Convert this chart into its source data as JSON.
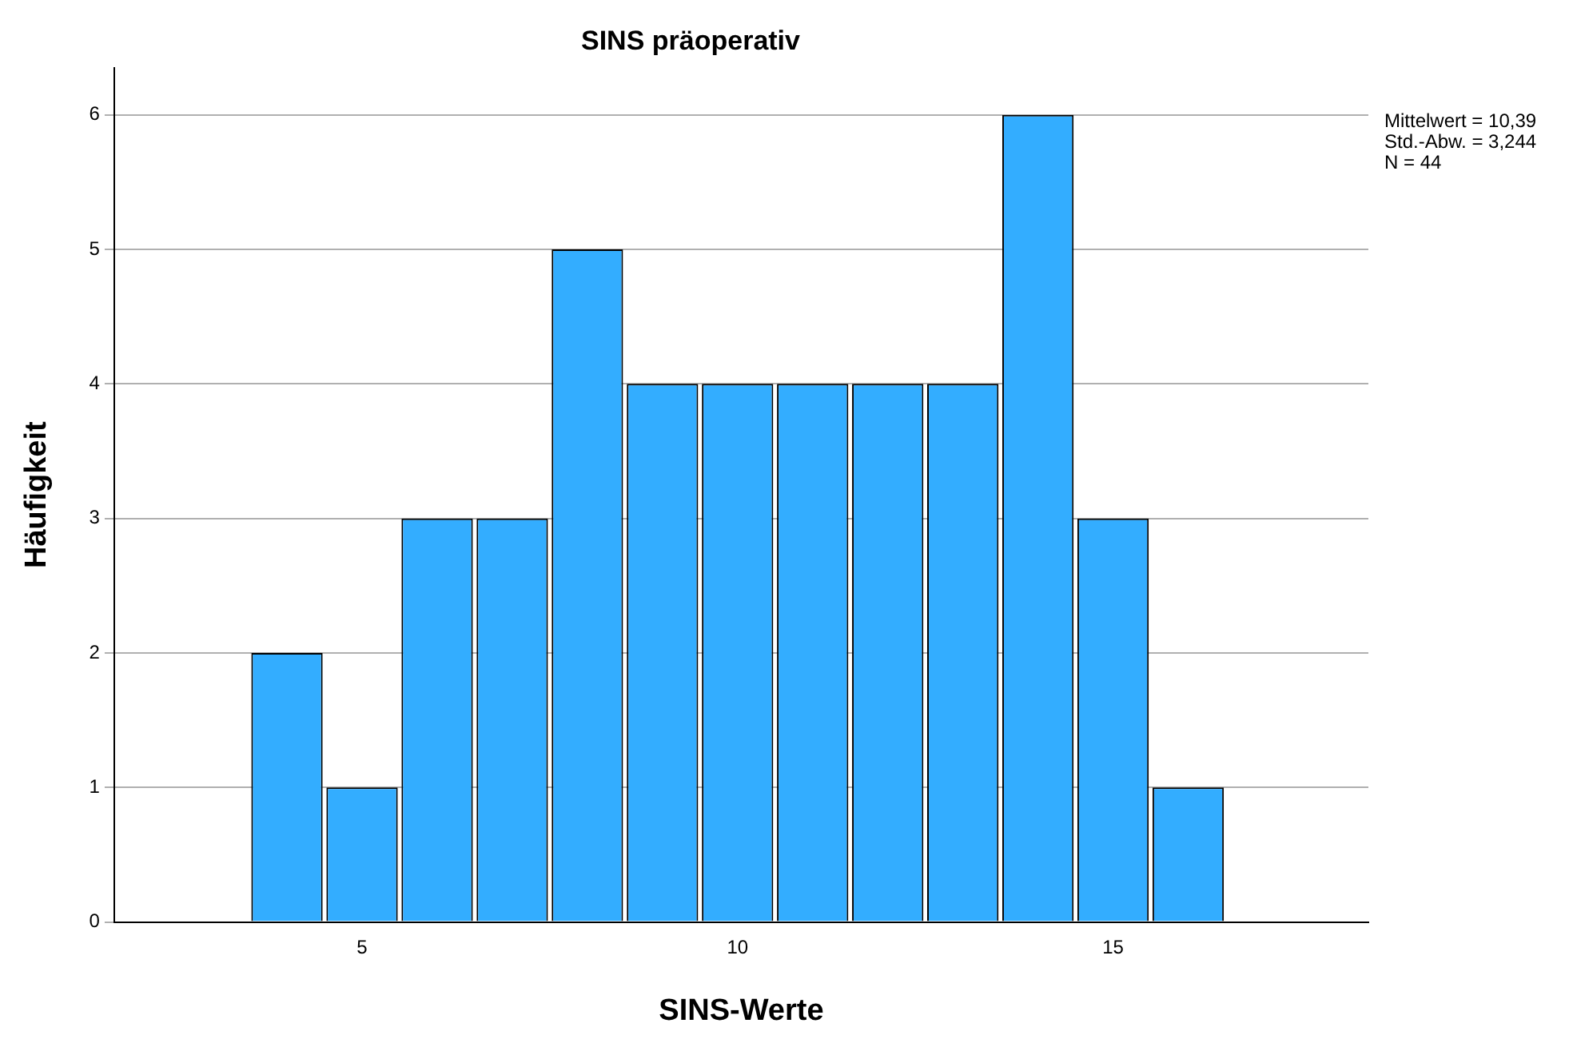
{
  "chart_data": {
    "type": "histogram",
    "title": "SINS präoperativ",
    "xlabel": "SINS-Werte",
    "ylabel": "Häufigkeit",
    "bins": [
      3.5,
      4.5,
      5.5,
      6.5,
      7.5,
      8.5,
      9.5,
      10.5,
      11.5,
      12.5,
      13.5,
      14.5,
      15.5,
      16.5
    ],
    "values": [
      2,
      1,
      3,
      3,
      5,
      4,
      4,
      4,
      4,
      4,
      6,
      3,
      1
    ],
    "color": "#33adff",
    "xlim": [
      1.7,
      18.4
    ],
    "xticks": [
      5,
      10,
      15
    ],
    "ylim": [
      0,
      6.35
    ],
    "yticks": [
      0,
      1,
      2,
      3,
      4,
      5,
      6
    ],
    "grid": "y",
    "annotations": [
      "Mittelwert = 10,39",
      "Std.-Abw. = 3,244",
      "N = 44"
    ]
  }
}
